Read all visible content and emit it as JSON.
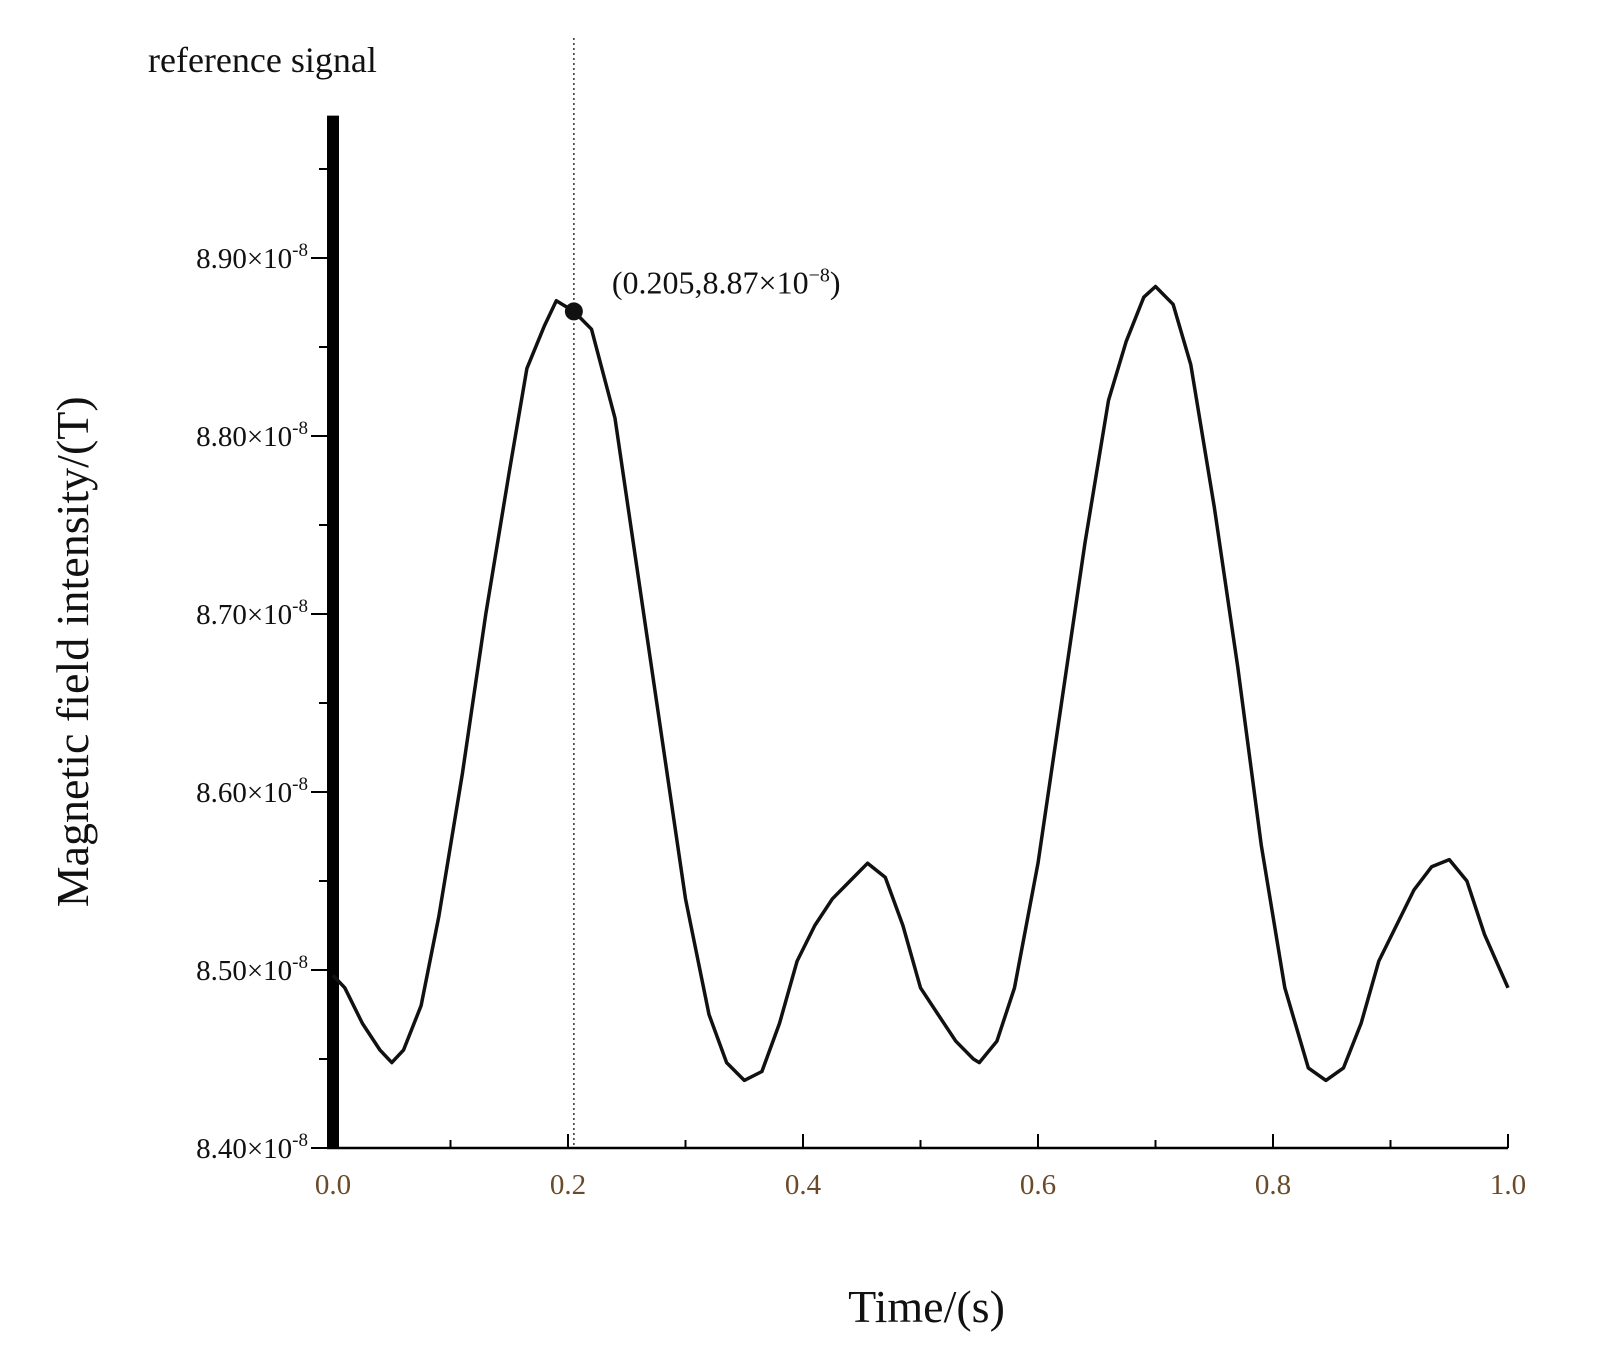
{
  "chart_data": {
    "type": "line",
    "legend": {
      "label": "reference signal",
      "placement": "top-left"
    },
    "xlabel": "Time/(s)",
    "ylabel": "Magnetic field intensity/(T)",
    "xlim": [
      0,
      1.0
    ],
    "ylim": [
      8.4e-08,
      8.98e-08
    ],
    "x_ticks": [
      {
        "value": 0.0,
        "label": "0.0"
      },
      {
        "value": 0.2,
        "label": "0.2"
      },
      {
        "value": 0.4,
        "label": "0.4"
      },
      {
        "value": 0.6,
        "label": "0.6"
      },
      {
        "value": 0.8,
        "label": "0.8"
      },
      {
        "value": 1.0,
        "label": "1.0"
      }
    ],
    "y_ticks": [
      {
        "value": 8.4e-08,
        "mantissa": "8.40",
        "exp": "-8"
      },
      {
        "value": 8.5e-08,
        "mantissa": "8.50",
        "exp": "-8"
      },
      {
        "value": 8.6e-08,
        "mantissa": "8.60",
        "exp": "-8"
      },
      {
        "value": 8.7e-08,
        "mantissa": "8.70",
        "exp": "-8"
      },
      {
        "value": 8.8e-08,
        "mantissa": "8.80",
        "exp": "-8"
      },
      {
        "value": 8.9e-08,
        "mantissa": "8.90",
        "exp": "-8"
      }
    ],
    "times_symbol": "×10",
    "grid": false,
    "series": [
      {
        "color": "#111111",
        "x": [
          0.0,
          0.01,
          0.025,
          0.04,
          0.05,
          0.06,
          0.075,
          0.09,
          0.11,
          0.13,
          0.15,
          0.165,
          0.18,
          0.19,
          0.205,
          0.22,
          0.24,
          0.26,
          0.28,
          0.3,
          0.32,
          0.335,
          0.35,
          0.365,
          0.38,
          0.395,
          0.41,
          0.425,
          0.44,
          0.455,
          0.47,
          0.485,
          0.5,
          0.515,
          0.53,
          0.545,
          0.55,
          0.565,
          0.58,
          0.6,
          0.62,
          0.64,
          0.66,
          0.675,
          0.69,
          0.7,
          0.715,
          0.73,
          0.75,
          0.77,
          0.79,
          0.81,
          0.83,
          0.845,
          0.86,
          0.875,
          0.89,
          0.905,
          0.92,
          0.935,
          0.95,
          0.965,
          0.98,
          1.0
        ],
        "y": [
          8.497e-08,
          8.49e-08,
          8.47e-08,
          8.455e-08,
          8.448e-08,
          8.455e-08,
          8.48e-08,
          8.53e-08,
          8.61e-08,
          8.7e-08,
          8.78e-08,
          8.838e-08,
          8.862e-08,
          8.876e-08,
          8.87e-08,
          8.86e-08,
          8.81e-08,
          8.72e-08,
          8.63e-08,
          8.54e-08,
          8.475e-08,
          8.448e-08,
          8.438e-08,
          8.443e-08,
          8.47e-08,
          8.505e-08,
          8.525e-08,
          8.54e-08,
          8.55e-08,
          8.56e-08,
          8.552e-08,
          8.525e-08,
          8.49e-08,
          8.475e-08,
          8.46e-08,
          8.45e-08,
          8.448e-08,
          8.46e-08,
          8.49e-08,
          8.56e-08,
          8.65e-08,
          8.74e-08,
          8.82e-08,
          8.853e-08,
          8.878e-08,
          8.884e-08,
          8.874e-08,
          8.84e-08,
          8.76e-08,
          8.67e-08,
          8.57e-08,
          8.49e-08,
          8.445e-08,
          8.438e-08,
          8.445e-08,
          8.47e-08,
          8.505e-08,
          8.525e-08,
          8.545e-08,
          8.558e-08,
          8.562e-08,
          8.55e-08,
          8.52e-08,
          8.49e-08
        ]
      }
    ],
    "reference_line_x": 0.205,
    "annotation": {
      "x": 0.205,
      "y": 8.87e-08,
      "prefix": "(0.205,8.87",
      "times": "×10",
      "exp": "−8",
      "suffix": ")"
    }
  }
}
